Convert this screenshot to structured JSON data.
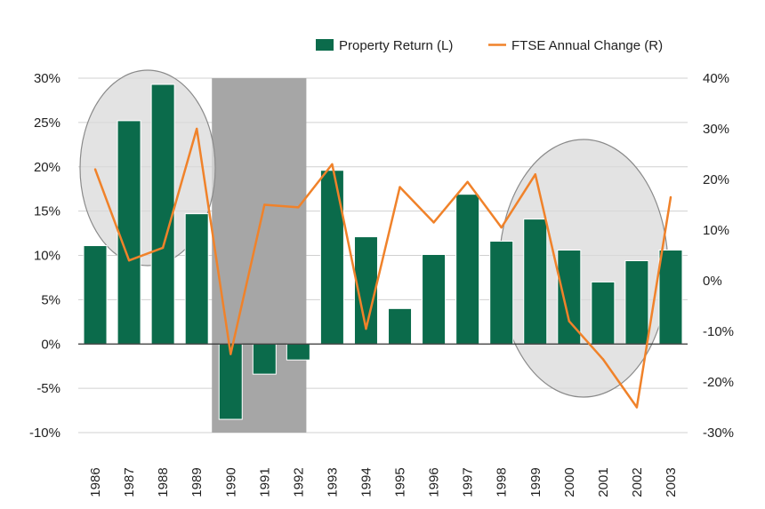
{
  "chart_data": {
    "type": "bar",
    "title": "",
    "xlabel": "",
    "ylabel": "",
    "categories": [
      "1986",
      "1987",
      "1988",
      "1989",
      "1990",
      "1991",
      "1992",
      "1993",
      "1994",
      "1995",
      "1996",
      "1997",
      "1998",
      "1999",
      "2000",
      "2001",
      "2002",
      "2003"
    ],
    "series": [
      {
        "name": "Property Return (L)",
        "type": "bar",
        "axis": "left",
        "color": "#0b6b4b",
        "values": [
          11.1,
          25.2,
          29.3,
          14.7,
          -8.5,
          -3.4,
          -1.8,
          19.6,
          12.1,
          4.0,
          10.1,
          16.9,
          11.6,
          14.1,
          10.6,
          7.0,
          9.4,
          10.6
        ]
      },
      {
        "name": "FTSE Annual Change (R)",
        "type": "line",
        "axis": "right",
        "color": "#f0822a",
        "values": [
          22.0,
          4.0,
          6.5,
          30.0,
          -14.5,
          15.0,
          14.5,
          23.0,
          -9.5,
          18.5,
          11.5,
          19.5,
          10.5,
          21.0,
          -8.0,
          -15.5,
          -25.0,
          16.5
        ]
      }
    ],
    "left_axis": {
      "ylim": [
        -10,
        30
      ],
      "ticks": [
        -10,
        -5,
        0,
        5,
        10,
        15,
        20,
        25,
        30
      ],
      "tick_labels": [
        "-10%",
        "-5%",
        "0%",
        "5%",
        "10%",
        "15%",
        "20%",
        "25%",
        "30%"
      ]
    },
    "right_axis": {
      "ylim": [
        -30,
        40
      ],
      "ticks": [
        -30,
        -20,
        -10,
        0,
        10,
        20,
        30,
        40
      ],
      "tick_labels": [
        "-30%",
        "-20%",
        "-10%",
        "0%",
        "10%",
        "20%",
        "30%",
        "40%"
      ]
    },
    "shaded_band": {
      "from": "1990",
      "to": "1992",
      "color": "#a6a6a6"
    },
    "highlight_ellipses": [
      {
        "from": "1986",
        "to": "1989",
        "color": "#d9d9d9"
      },
      {
        "from": "1999",
        "to": "2003",
        "color": "#d9d9d9"
      }
    ],
    "grid": true,
    "legend_position": "top-right"
  }
}
